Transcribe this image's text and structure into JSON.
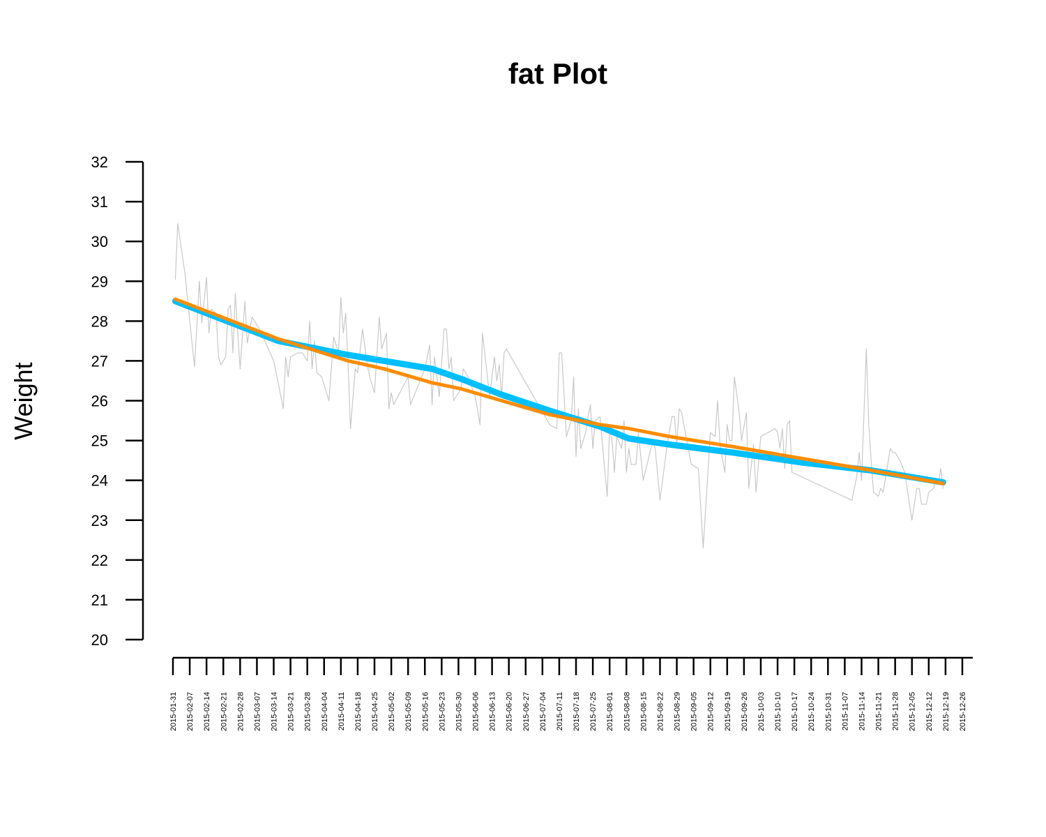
{
  "chart_data": {
    "type": "line",
    "title": "fat Plot",
    "ylabel": "Weight",
    "xlim": [
      "2015-01-31",
      "2015-12-26"
    ],
    "xticks": [
      "2015-01-31",
      "2015-02-07",
      "2015-02-14",
      "2015-02-21",
      "2015-02-28",
      "2015-03-07",
      "2015-03-14",
      "2015-03-21",
      "2015-03-28",
      "2015-04-04",
      "2015-04-11",
      "2015-04-18",
      "2015-04-25",
      "2015-05-02",
      "2015-05-09",
      "2015-05-16",
      "2015-05-23",
      "2015-05-30",
      "2015-06-06",
      "2015-06-13",
      "2015-06-20",
      "2015-06-27",
      "2015-07-04",
      "2015-07-11",
      "2015-07-18",
      "2015-07-25",
      "2015-08-01",
      "2015-08-08",
      "2015-08-15",
      "2015-08-22",
      "2015-08-29",
      "2015-09-05",
      "2015-09-12",
      "2015-09-19",
      "2015-09-26",
      "2015-10-03",
      "2015-10-10",
      "2015-10-17",
      "2015-10-24",
      "2015-10-31",
      "2015-11-07",
      "2015-11-14",
      "2015-11-21",
      "2015-11-28",
      "2015-12-05",
      "2015-12-12",
      "2015-12-19",
      "2015-12-26"
    ],
    "ylim": [
      20,
      32
    ],
    "yticks": [
      20,
      21,
      22,
      23,
      24,
      25,
      26,
      27,
      28,
      29,
      30,
      31,
      32
    ],
    "series": [
      {
        "color": "#c8c8c8",
        "line_width": 1.2,
        "x": [
          "2015-02-01",
          "2015-02-02",
          "2015-02-05",
          "2015-02-07",
          "2015-02-09",
          "2015-02-11",
          "2015-02-12",
          "2015-02-14",
          "2015-02-15",
          "2015-02-16",
          "2015-02-18",
          "2015-02-19",
          "2015-02-20",
          "2015-02-22",
          "2015-02-23",
          "2015-02-24",
          "2015-02-25",
          "2015-02-26",
          "2015-02-27",
          "2015-02-28",
          "2015-03-02",
          "2015-03-03",
          "2015-03-05",
          "2015-03-08",
          "2015-03-14",
          "2015-03-18",
          "2015-03-19",
          "2015-03-20",
          "2015-03-21",
          "2015-03-24",
          "2015-03-26",
          "2015-03-28",
          "2015-03-29",
          "2015-03-30",
          "2015-03-31",
          "2015-04-01",
          "2015-04-03",
          "2015-04-06",
          "2015-04-08",
          "2015-04-10",
          "2015-04-11",
          "2015-04-12",
          "2015-04-13",
          "2015-04-14",
          "2015-04-15",
          "2015-04-17",
          "2015-04-18",
          "2015-04-20",
          "2015-04-22",
          "2015-04-23",
          "2015-04-25",
          "2015-04-27",
          "2015-04-28",
          "2015-04-30",
          "2015-05-01",
          "2015-05-02",
          "2015-05-03",
          "2015-05-09",
          "2015-05-10",
          "2015-05-14",
          "2015-05-16",
          "2015-05-18",
          "2015-05-19",
          "2015-05-20",
          "2015-05-22",
          "2015-05-24",
          "2015-05-25",
          "2015-05-26",
          "2015-05-27",
          "2015-05-28",
          "2015-05-31",
          "2015-06-01",
          "2015-06-03",
          "2015-06-06",
          "2015-06-08",
          "2015-06-09",
          "2015-06-12",
          "2015-06-14",
          "2015-06-15",
          "2015-06-16",
          "2015-06-17",
          "2015-06-18",
          "2015-06-19",
          "2015-07-07",
          "2015-07-10",
          "2015-07-11",
          "2015-07-12",
          "2015-07-14",
          "2015-07-16",
          "2015-07-17",
          "2015-07-18",
          "2015-07-19",
          "2015-07-20",
          "2015-07-22",
          "2015-07-23",
          "2015-07-24",
          "2015-07-25",
          "2015-07-26",
          "2015-07-28",
          "2015-07-29",
          "2015-07-31",
          "2015-08-01",
          "2015-08-02",
          "2015-08-03",
          "2015-08-04",
          "2015-08-06",
          "2015-08-07",
          "2015-08-08",
          "2015-08-09",
          "2015-08-10",
          "2015-08-12",
          "2015-08-13",
          "2015-08-15",
          "2015-08-19",
          "2015-08-20",
          "2015-08-22",
          "2015-08-25",
          "2015-08-27",
          "2015-08-28",
          "2015-08-29",
          "2015-08-30",
          "2015-08-31",
          "2015-09-04",
          "2015-09-07",
          "2015-09-09",
          "2015-09-12",
          "2015-09-14",
          "2015-09-15",
          "2015-09-16",
          "2015-09-18",
          "2015-09-19",
          "2015-09-20",
          "2015-09-21",
          "2015-09-22",
          "2015-09-24",
          "2015-09-25",
          "2015-09-27",
          "2015-09-28",
          "2015-09-30",
          "2015-10-01",
          "2015-10-03",
          "2015-10-09",
          "2015-10-10",
          "2015-10-11",
          "2015-10-12",
          "2015-10-13",
          "2015-10-14",
          "2015-10-15",
          "2015-10-16",
          "2015-11-10",
          "2015-11-12",
          "2015-11-13",
          "2015-11-14",
          "2015-11-16",
          "2015-11-17",
          "2015-11-18",
          "2015-11-19",
          "2015-11-21",
          "2015-11-22",
          "2015-11-23",
          "2015-11-26",
          "2015-11-27",
          "2015-11-28",
          "2015-11-30",
          "2015-12-02",
          "2015-12-05",
          "2015-12-07",
          "2015-12-08",
          "2015-12-09",
          "2015-12-11",
          "2015-12-12",
          "2015-12-14",
          "2015-12-15",
          "2015-12-16",
          "2015-12-17",
          "2015-12-18"
        ],
        "values": [
          29.05,
          30.45,
          29.2,
          28.0,
          26.85,
          29.0,
          27.95,
          29.1,
          27.7,
          28.3,
          28.2,
          27.1,
          26.9,
          27.1,
          28.3,
          28.4,
          27.2,
          28.7,
          27.7,
          26.8,
          28.5,
          27.45,
          28.1,
          27.8,
          27.0,
          25.8,
          27.1,
          26.6,
          27.1,
          27.2,
          27.2,
          27.0,
          28.0,
          26.8,
          27.5,
          26.7,
          26.6,
          26.0,
          27.6,
          27.2,
          28.6,
          27.7,
          28.2,
          26.9,
          25.3,
          26.8,
          26.7,
          27.8,
          26.9,
          26.6,
          26.2,
          28.1,
          27.3,
          27.7,
          25.8,
          26.2,
          25.9,
          26.6,
          25.9,
          26.5,
          26.8,
          27.4,
          25.9,
          27.1,
          26.1,
          27.8,
          27.8,
          26.8,
          27.1,
          26.0,
          26.3,
          26.8,
          26.6,
          26.1,
          25.4,
          27.7,
          26.1,
          27.1,
          26.5,
          26.9,
          26.1,
          27.2,
          27.3,
          25.4,
          25.3,
          27.2,
          27.2,
          25.1,
          25.5,
          26.6,
          24.6,
          25.8,
          24.8,
          25.2,
          25.6,
          25.9,
          24.8,
          25.5,
          25.6,
          24.9,
          23.6,
          25.3,
          25.0,
          24.2,
          25.1,
          24.8,
          25.5,
          24.2,
          24.8,
          24.4,
          24.4,
          25.2,
          24.0,
          25.0,
          24.8,
          23.5,
          24.9,
          25.6,
          25.6,
          24.9,
          25.8,
          25.7,
          24.4,
          24.3,
          22.3,
          25.2,
          25.1,
          26.0,
          24.9,
          24.2,
          25.4,
          25.0,
          25.0,
          26.6,
          25.7,
          25.0,
          25.7,
          23.8,
          24.9,
          23.7,
          25.1,
          25.3,
          25.2,
          24.8,
          25.3,
          24.3,
          25.4,
          25.5,
          24.2,
          23.5,
          24.1,
          24.7,
          24.0,
          27.3,
          25.4,
          24.5,
          23.7,
          23.6,
          23.8,
          23.7,
          24.8,
          24.7,
          24.7,
          24.5,
          24.2,
          23.0,
          23.8,
          23.8,
          23.4,
          23.4,
          23.7,
          23.8,
          24.0,
          23.9,
          24.3,
          23.8
        ]
      },
      {
        "color": "#00bfff",
        "line_width": 9,
        "x": [
          "2015-02-01",
          "2015-03-16",
          "2015-04-14",
          "2015-04-29",
          "2015-05-19",
          "2015-05-31",
          "2015-06-17",
          "2015-07-07",
          "2015-07-28",
          "2015-08-09",
          "2015-08-26",
          "2015-09-21",
          "2015-10-20",
          "2015-11-18",
          "2015-12-18"
        ],
        "values": [
          28.5,
          27.5,
          27.15,
          27.0,
          26.8,
          26.55,
          26.15,
          25.75,
          25.35,
          25.05,
          24.9,
          24.7,
          24.45,
          24.25,
          23.95
        ]
      },
      {
        "color": "#ff8c00",
        "line_width": 5,
        "x": [
          "2015-02-01",
          "2015-03-16",
          "2015-04-14",
          "2015-04-29",
          "2015-05-19",
          "2015-05-31",
          "2015-06-17",
          "2015-07-07",
          "2015-07-28",
          "2015-08-09",
          "2015-08-26",
          "2015-09-21",
          "2015-10-20",
          "2015-11-18",
          "2015-12-18"
        ],
        "values": [
          28.55,
          27.55,
          27.0,
          26.8,
          26.45,
          26.3,
          26.0,
          25.65,
          25.4,
          25.3,
          25.1,
          24.85,
          24.55,
          24.25,
          23.92
        ]
      }
    ]
  }
}
